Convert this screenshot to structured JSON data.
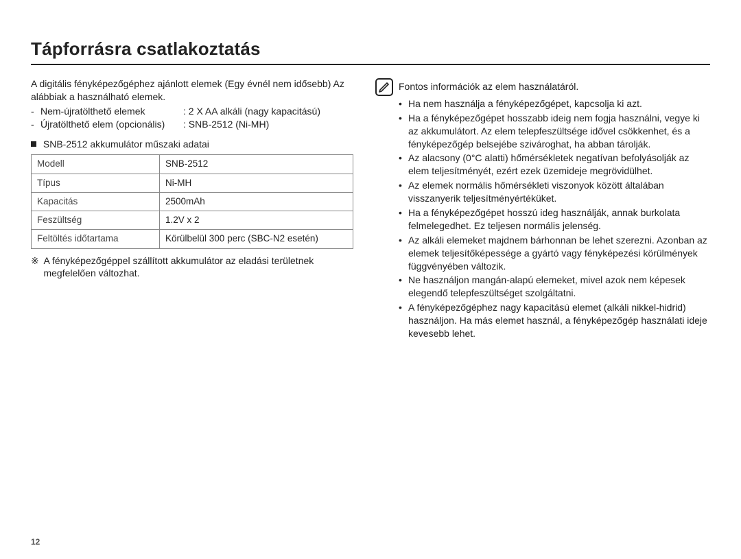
{
  "title": "Tápforrásra csatlakoztatás",
  "left": {
    "intro": "A digitális fényképezőgéphez ajánlott elemek (Egy évnél nem idősebb) Az alábbiak a használható elemek.",
    "items": [
      {
        "label": "Nem-újratölthető elemek",
        "value": ": 2 X AA alkáli (nagy kapacitású)"
      },
      {
        "label": "Újratölthető elem (opcionális)",
        "value": ": SNB-2512 (Ni-MH)"
      }
    ],
    "spec_heading": "SNB-2512 akkumulátor műszaki adatai",
    "table": {
      "rows": [
        [
          "Modell",
          "SNB-2512"
        ],
        [
          "Típus",
          "Ni-MH"
        ],
        [
          "Kapacitás",
          "2500mAh"
        ],
        [
          "Feszültség",
          "1.2V x 2"
        ],
        [
          "Feltöltés időtartama",
          "Körülbelül 300 perc (SBC-N2 esetén)"
        ]
      ]
    },
    "footnote_mark": "※",
    "footnote": "A fényképezőgéppel szállított akkumulátor az eladási területnek megfelelően változhat."
  },
  "right": {
    "heading": "Fontos információk az elem használatáról.",
    "bullets": [
      "Ha nem használja a fényképezőgépet, kapcsolja ki azt.",
      "Ha a fényképezőgépet hosszabb ideig nem fogja használni, vegye ki az akkumulátort. Az elem telepfeszültsége idővel csökkenhet, és a fényképezőgép belsejébe szivároghat, ha abban tárolják.",
      "Az alacsony (0°C alatti) hőmérsékletek negatívan befolyásolják az elem teljesítményét, ezért ezek üzemideje megrövidülhet.",
      "Az elemek normális hőmérsékleti viszonyok között általában visszanyerik teljesítményértéküket.",
      "Ha a fényképezőgépet hosszú ideg használják, annak burkolata felmelegedhet. Ez teljesen normális jelenség.",
      "Az alkáli elemeket majdnem bárhonnan be lehet szerezni. Azonban az elemek teljesítőképessége a gyártó vagy fényképezési körülmények függvényében változik.",
      "Ne használjon mangán-alapú elemeket, mivel azok nem képesek elegendő telepfeszültséget szolgáltatni.",
      "A fényképezőgéphez nagy kapacitású elemet (alkáli nikkel-hidrid) használjon. Ha más elemet használ, a fényképezőgép használati ideje kevesebb lehet."
    ]
  },
  "pageNumber": "12"
}
